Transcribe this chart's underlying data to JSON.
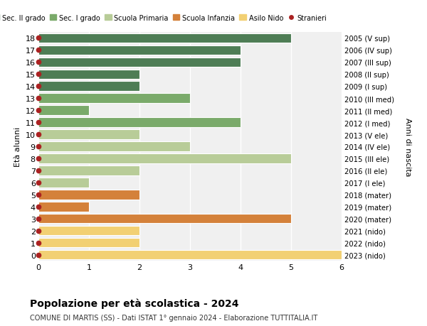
{
  "ages": [
    18,
    17,
    16,
    15,
    14,
    13,
    12,
    11,
    10,
    9,
    8,
    7,
    6,
    5,
    4,
    3,
    2,
    1,
    0
  ],
  "right_labels": [
    "2005 (V sup)",
    "2006 (IV sup)",
    "2007 (III sup)",
    "2008 (II sup)",
    "2009 (I sup)",
    "2010 (III med)",
    "2011 (II med)",
    "2012 (I med)",
    "2013 (V ele)",
    "2014 (IV ele)",
    "2015 (III ele)",
    "2016 (II ele)",
    "2017 (I ele)",
    "2018 (mater)",
    "2019 (mater)",
    "2020 (mater)",
    "2021 (nido)",
    "2022 (nido)",
    "2023 (nido)"
  ],
  "values": [
    5,
    4,
    4,
    2,
    2,
    3,
    1,
    4,
    2,
    3,
    5,
    2,
    1,
    2,
    1,
    5,
    2,
    2,
    6
  ],
  "colors": [
    "#4e7d55",
    "#4e7d55",
    "#4e7d55",
    "#4e7d55",
    "#4e7d55",
    "#7aaa6a",
    "#7aaa6a",
    "#7aaa6a",
    "#b8cc98",
    "#b8cc98",
    "#b8cc98",
    "#b8cc98",
    "#b8cc98",
    "#d4813a",
    "#d4813a",
    "#d4813a",
    "#f2d073",
    "#f2d073",
    "#f2d073"
  ],
  "stranieri_dot_color": "#aa2222",
  "legend_labels": [
    "Sec. II grado",
    "Sec. I grado",
    "Scuola Primaria",
    "Scuola Infanzia",
    "Asilo Nido",
    "Stranieri"
  ],
  "legend_colors": [
    "#4e7d55",
    "#7aaa6a",
    "#b8cc98",
    "#d4813a",
    "#f2d073",
    "#aa2222"
  ],
  "title": "Popolazione per età scolastica - 2024",
  "subtitle": "COMUNE DI MARTIS (SS) - Dati ISTAT 1° gennaio 2024 - Elaborazione TUTTITALIA.IT",
  "ylabel": "Età alunni",
  "right_ylabel": "Anni di nascita",
  "xlim": [
    0,
    6
  ],
  "background_color": "#ffffff",
  "bar_background": "#f0f0f0",
  "grid_color": "#ffffff",
  "bar_height": 0.8
}
